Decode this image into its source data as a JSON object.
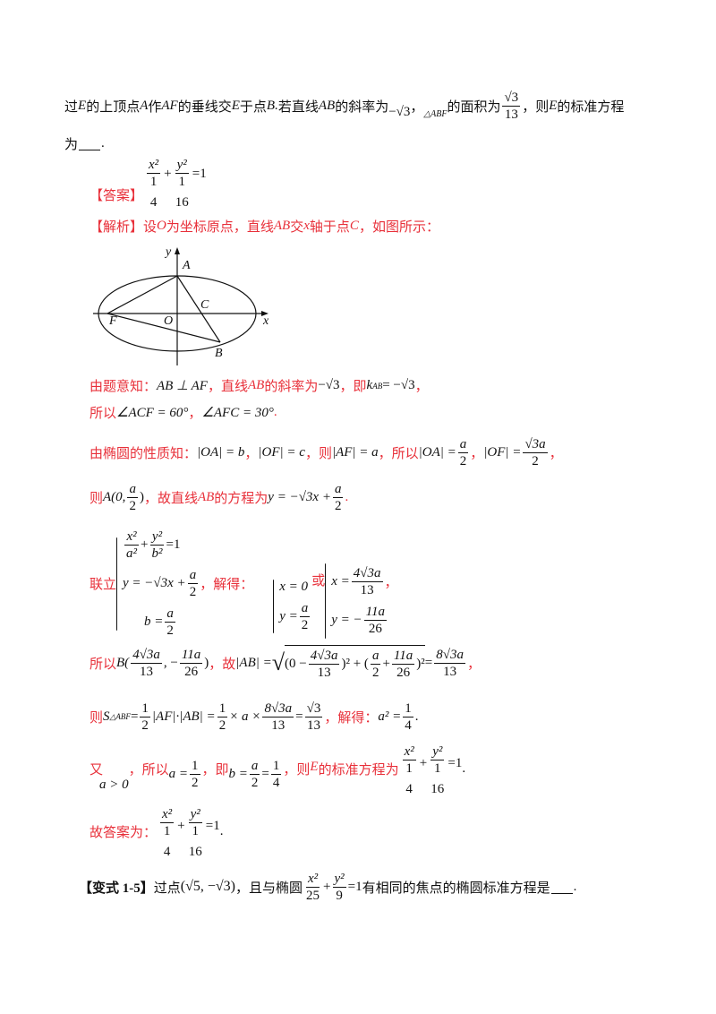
{
  "question": {
    "text1": "过",
    "E": "E",
    "text2": "的上顶点",
    "A": "A",
    "text3": "作",
    "AF": "AF",
    "text4": "的垂线交",
    "text5": "于点",
    "B": "B.",
    "text6": "若直线",
    "AB": "AB",
    "text7": "的斜率为",
    "slope": "−√3",
    "comma": "，",
    "triangle": "△ABF",
    "text8": "的面积为",
    "area_num": "√3",
    "area_den": "13",
    "text9": "，则",
    "text10": "的标准方程",
    "line2": "为",
    "period": "."
  },
  "answer": {
    "label": "【答案】",
    "x2": "x²",
    "y2": "y²",
    "one": "1",
    "plus": "+",
    "eq": "=1",
    "den_x": "4",
    "den_y": "16"
  },
  "analysis": {
    "label": "【解析】",
    "text": "设",
    "O": "O",
    "text2": "为坐标原点，直线",
    "AB": "AB",
    "text3": "交",
    "x": "x",
    "text4": "轴于点",
    "C": "C",
    "text5": "，如图所示："
  },
  "diagram": {
    "labels": {
      "y": "y",
      "x": "x",
      "A": "A",
      "C": "C",
      "F": "F",
      "O": "O",
      "B": "B"
    }
  },
  "steps": {
    "s1_a": "由题意知：",
    "s1_m1": "AB ⊥ AF",
    "s1_b": "，直线",
    "s1_AB": "AB",
    "s1_c": "的斜率为",
    "s1_m2": "−√3",
    "s1_d": "，即",
    "s1_m3": "k",
    "s1_sub": "AB",
    "s1_m4": " = −√3",
    "s1_e": "，",
    "s2_a": "所以",
    "s2_m1": "∠ACF = 60°",
    "s2_b": "，",
    "s2_m2": "∠AFC = 30°",
    "s2_c": ".",
    "s3_a": "由椭圆的性质知：",
    "s3_m1": "|OA| = b",
    "s3_m2": "|OF| = c",
    "s3_b": "，则",
    "s3_m3": "|AF| = a",
    "s3_c": "，所以",
    "s3_m4": "|OA| =",
    "s3_f1n": "a",
    "s3_f1d": "2",
    "s3_m5": "|OF| =",
    "s3_f2n": "√3a",
    "s3_f2d": "2",
    "s4_a": "则",
    "s4_m1": "A(0,",
    "s4_fn": "a",
    "s4_fd": "2",
    "s4_m2": ")",
    "s4_b": "，故直线",
    "s4_AB": "AB",
    "s4_c": "的方程为",
    "s4_m3": "y = −√3x +",
    "s4_d": ".",
    "s5_a": "联立",
    "s5_r1": "+",
    "s5_a2": "a²",
    "s5_b2": "b²",
    "s5_eq1": "=1",
    "s5_r2": "y = −√3x +",
    "s5_r3": "b =",
    "s5_b": "，解得：",
    "s5_sol1x": "x = 0",
    "s5_sol1y": "y =",
    "s5_or": "或",
    "s5_sol2x": "x =",
    "s5_sol2xn": "4√3a",
    "s5_sol2xd": "13",
    "s5_sol2y": "y = −",
    "s5_sol2yn": "11a",
    "s5_sol2yd": "26",
    "s6_a": "所以",
    "s6_m1": "B(",
    "s6_m2": ", −",
    "s6_m3": ")",
    "s6_b": "，故",
    "s6_m4": "|AB| =",
    "s6_m5": "(0 −",
    "s6_m6": ")² + (",
    "s6_m7": "+",
    "s6_m8": ")²",
    "s6_m9": "=",
    "s6_rn": "8√3a",
    "s6_rd": "13",
    "s7_a": "则",
    "s7_m1": "S",
    "s7_sub": "△ABF",
    "s7_m2": "=",
    "s7_m3": "|AF|·|AB| =",
    "s7_m4": "× a ×",
    "s7_b": "，解得：",
    "s7_m5": "a² =",
    "s8_a": "又",
    "s8_m1": "a > 0",
    "s8_b": "，所以",
    "s8_m2": "a =",
    "s8_c": "，即",
    "s8_m3": "b =",
    "s8_d": "，则",
    "s8_e": "的标准方程为",
    "s9_a": "故答案为："
  },
  "variant": {
    "label": "【变式 1-5】",
    "text1": "过点",
    "point": "(√5, −√3)",
    "text2": "，且与椭圆",
    "den1": "25",
    "den2": "9",
    "text3": "有相同的焦点的椭圆标准方程是",
    "period": "."
  }
}
